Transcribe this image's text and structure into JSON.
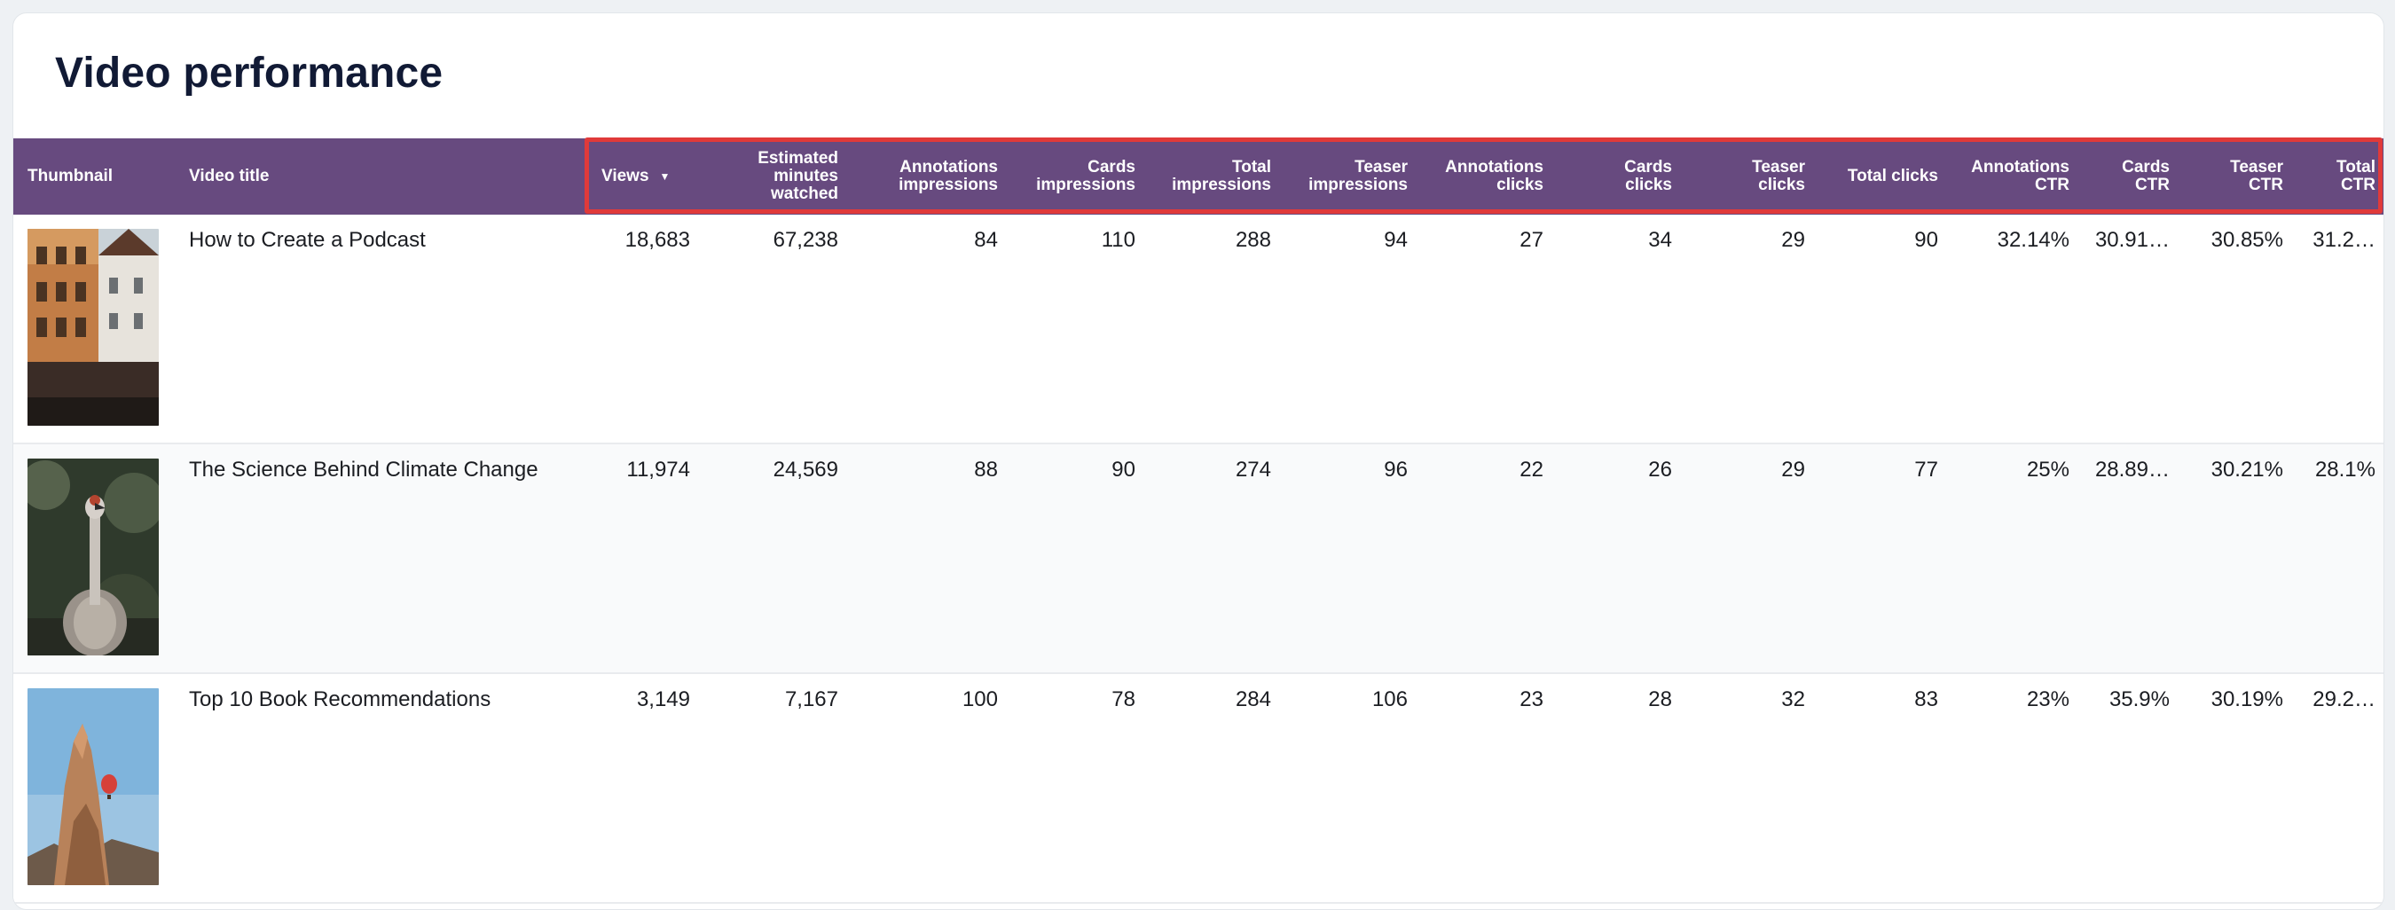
{
  "page": {
    "title": "Video performance"
  },
  "table": {
    "columns": {
      "thumbnail": "Thumbnail",
      "video_title": "Video title",
      "views": "Views",
      "estimated_minutes_watched": "Estimated\nminutes\nwatched",
      "annotations_impressions": "Annotations\nimpressions",
      "cards_impressions": "Cards\nimpressions",
      "total_impressions": "Total\nimpressions",
      "teaser_impressions": "Teaser\nimpressions",
      "annotations_clicks": "Annotations\nclicks",
      "cards_clicks": "Cards\nclicks",
      "teaser_clicks": "Teaser\nclicks",
      "total_clicks": "Total clicks",
      "annotations_ctr": "Annotations\nCTR",
      "cards_ctr": "Cards\nCTR",
      "teaser_ctr": "Teaser\nCTR",
      "total_ctr": "Total\nCTR"
    },
    "sort_icon": "sort-descending-icon",
    "rows": [
      {
        "thumbnail": "street-buildings-thumbnail",
        "title": "How to Create a Podcast",
        "views": "18,683",
        "estimated_minutes_watched": "67,238",
        "annotations_impressions": "84",
        "cards_impressions": "110",
        "total_impressions": "288",
        "teaser_impressions": "94",
        "annotations_clicks": "27",
        "cards_clicks": "34",
        "teaser_clicks": "29",
        "total_clicks": "90",
        "annotations_ctr": "32.14%",
        "cards_ctr": "30.91…",
        "teaser_ctr": "30.85%",
        "total_ctr": "31.2…"
      },
      {
        "thumbnail": "bird-thumbnail",
        "title": "The Science Behind Climate Change",
        "views": "11,974",
        "estimated_minutes_watched": "24,569",
        "annotations_impressions": "88",
        "cards_impressions": "90",
        "total_impressions": "274",
        "teaser_impressions": "96",
        "annotations_clicks": "22",
        "cards_clicks": "26",
        "teaser_clicks": "29",
        "total_clicks": "77",
        "annotations_ctr": "25%",
        "cards_ctr": "28.89…",
        "teaser_ctr": "30.21%",
        "total_ctr": "28.1%"
      },
      {
        "thumbnail": "rock-balloon-thumbnail",
        "title": "Top 10 Book Recommendations",
        "views": "3,149",
        "estimated_minutes_watched": "7,167",
        "annotations_impressions": "100",
        "cards_impressions": "78",
        "total_impressions": "284",
        "teaser_impressions": "106",
        "annotations_clicks": "23",
        "cards_clicks": "28",
        "teaser_clicks": "32",
        "total_clicks": "83",
        "annotations_ctr": "23%",
        "cards_ctr": "35.9%",
        "teaser_ctr": "30.19%",
        "total_ctr": "29.2…"
      }
    ]
  },
  "colors": {
    "header_bg": "#674a7f",
    "highlight_border": "#e03a3a",
    "title_text": "#111a35"
  }
}
